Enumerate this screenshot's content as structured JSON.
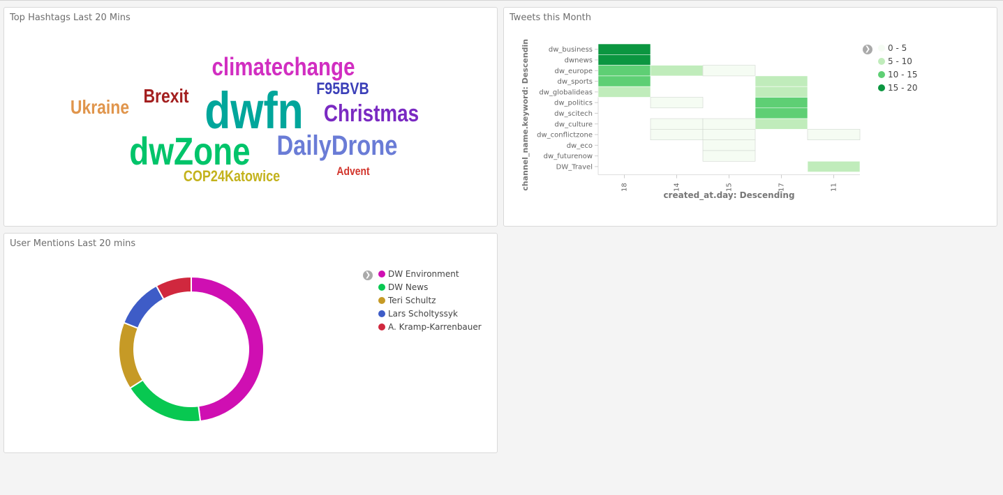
{
  "panels": {
    "hashtags": {
      "title": "Top Hashtags Last 20 Mins"
    },
    "tweets": {
      "title": "Tweets this Month"
    },
    "mentions": {
      "title": "User Mentions Last 20 mins"
    }
  },
  "legend_toggle_icon": "chevron-right-icon",
  "chart_data": [
    {
      "type": "wordcloud",
      "title": "Top Hashtags Last 20 Mins",
      "words": [
        {
          "text": "dwfn",
          "weight": 100,
          "color": "#00a69b"
        },
        {
          "text": "dwZone",
          "weight": 80,
          "color": "#00c46a"
        },
        {
          "text": "climatechange",
          "weight": 55,
          "color": "#d12ec1"
        },
        {
          "text": "DailyDrone",
          "weight": 55,
          "color": "#6a7cd6"
        },
        {
          "text": "Christmas",
          "weight": 52,
          "color": "#7a2ac2"
        },
        {
          "text": "Brexit",
          "weight": 42,
          "color": "#a31f1f"
        },
        {
          "text": "Ukraine",
          "weight": 42,
          "color": "#e0954c"
        },
        {
          "text": "F95BVB",
          "weight": 35,
          "color": "#3b3fb8"
        },
        {
          "text": "COP24Katowice",
          "weight": 32,
          "color": "#c3b21c"
        },
        {
          "text": "Advent",
          "weight": 28,
          "color": "#d2352c"
        }
      ]
    },
    {
      "type": "heatmap",
      "title": "Tweets this Month",
      "xlabel": "created_at.day: Descending",
      "ylabel": "channel_name.keyword: Descendin",
      "x": [
        "18",
        "14",
        "15",
        "17",
        "11"
      ],
      "y": [
        "dw_business",
        "dwnews",
        "dw_europe",
        "dw_sports",
        "dw_globalideas",
        "dw_politics",
        "dw_scitech",
        "dw_culture",
        "dw_conflictzone",
        "dw_eco",
        "dw_futurenow",
        "DW_Travel"
      ],
      "values": [
        [
          17,
          null,
          null,
          null,
          null
        ],
        [
          17,
          null,
          null,
          null,
          null
        ],
        [
          12,
          6,
          1,
          null,
          null
        ],
        [
          12,
          null,
          null,
          6,
          null
        ],
        [
          6,
          null,
          null,
          6,
          null
        ],
        [
          null,
          1,
          null,
          12,
          null
        ],
        [
          null,
          null,
          null,
          12,
          null
        ],
        [
          null,
          1,
          1,
          6,
          null
        ],
        [
          null,
          1,
          1,
          null,
          1
        ],
        [
          null,
          null,
          1,
          null,
          null
        ],
        [
          null,
          null,
          1,
          null,
          null
        ],
        [
          null,
          null,
          null,
          null,
          6
        ]
      ],
      "legend": [
        {
          "label": "0 - 5",
          "color": "#f5fcf3"
        },
        {
          "label": "5 - 10",
          "color": "#c0ecbb"
        },
        {
          "label": "10 - 15",
          "color": "#5ecf74"
        },
        {
          "label": "15 - 20",
          "color": "#0b9640"
        }
      ],
      "legend_position": "top-right"
    },
    {
      "type": "pie",
      "style": "donut",
      "title": "User Mentions Last 20 mins",
      "slices": [
        {
          "label": "DW Environment",
          "value": 48,
          "color": "#cf0fb2"
        },
        {
          "label": "DW News",
          "value": 18,
          "color": "#08c851"
        },
        {
          "label": "Teri Schultz",
          "value": 15,
          "color": "#c69a26"
        },
        {
          "label": "Lars Scholtyssyk",
          "value": 11,
          "color": "#3e5cc7"
        },
        {
          "label": "A. Kramp-Karrenbauer",
          "value": 8,
          "color": "#d0283e"
        }
      ],
      "legend_position": "right"
    }
  ]
}
